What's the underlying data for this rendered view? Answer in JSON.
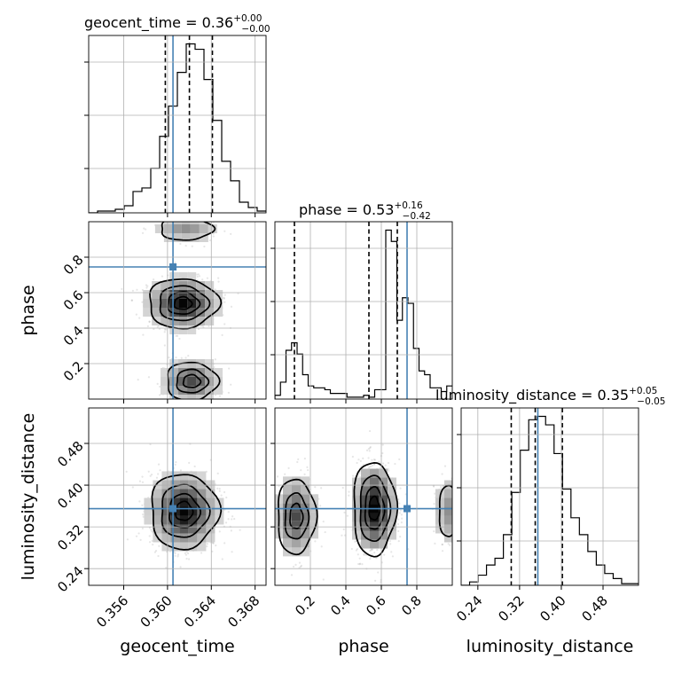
{
  "chart_data": {
    "type": "corner",
    "parameters": [
      "geocent_time",
      "phase",
      "luminosity_distance"
    ],
    "titles": [
      {
        "text": "geocent_time = 0.36",
        "plus": "+0.00",
        "minus": "−0.00"
      },
      {
        "text": "phase = 0.53",
        "plus": "+0.16",
        "minus": "−0.42"
      },
      {
        "text": "luminosity_distance = 0.35",
        "plus": "+0.05",
        "minus": "−0.05"
      }
    ],
    "ranges": {
      "geocent_time": [
        0.3528,
        0.369
      ],
      "phase": [
        0.0,
        1.0
      ],
      "luminosity_distance": [
        0.208,
        0.548
      ]
    },
    "ticks": {
      "geocent_time": [
        0.356,
        0.36,
        0.364,
        0.368
      ],
      "phase": [
        0.2,
        0.4,
        0.6,
        0.8
      ],
      "luminosity_distance": [
        0.24,
        0.32,
        0.4,
        0.48
      ]
    },
    "tick_labels": {
      "geocent_time": [
        "0.356",
        "0.360",
        "0.364",
        "0.368"
      ],
      "phase": [
        "0.2",
        "0.4",
        "0.6",
        "0.8"
      ],
      "luminosity_distance": [
        "0.24",
        "0.32",
        "0.40",
        "0.48"
      ]
    },
    "truths": {
      "geocent_time": 0.3605,
      "phase": 0.745,
      "luminosity_distance": 0.355
    },
    "quantiles": {
      "geocent_time": [
        0.3598,
        0.362,
        0.3641
      ],
      "phase": [
        0.11,
        0.53,
        0.69
      ],
      "luminosity_distance": [
        0.304,
        0.35,
        0.402
      ]
    },
    "histograms": {
      "geocent_time": {
        "edges_range": [
          0.3528,
          0.369
        ],
        "counts": [
          0,
          1,
          1,
          2,
          4,
          12,
          14,
          25,
          43,
          60,
          79,
          95,
          92,
          75,
          52,
          29,
          18,
          6,
          3,
          1
        ]
      },
      "phase": {
        "edges_range": [
          0.0,
          1.0
        ],
        "counts": [
          2,
          9,
          26,
          30,
          24,
          13,
          7,
          6,
          6,
          5,
          3,
          3,
          3,
          1,
          1,
          1,
          2,
          1,
          5,
          5,
          90,
          84,
          42,
          54,
          51,
          27,
          15,
          13,
          6,
          6,
          4,
          7
        ]
      },
      "luminosity_distance": {
        "edges_range": [
          0.208,
          0.548
        ],
        "counts": [
          0,
          2,
          6,
          12,
          16,
          30,
          55,
          80,
          98,
          100,
          95,
          78,
          57,
          40,
          30,
          20,
          12,
          7,
          4,
          1,
          1
        ]
      }
    },
    "grid": true,
    "axis_labels": {
      "x": [
        "geocent_time",
        "phase",
        "luminosity_distance"
      ],
      "y": [
        "phase",
        "luminosity_distance"
      ]
    }
  }
}
